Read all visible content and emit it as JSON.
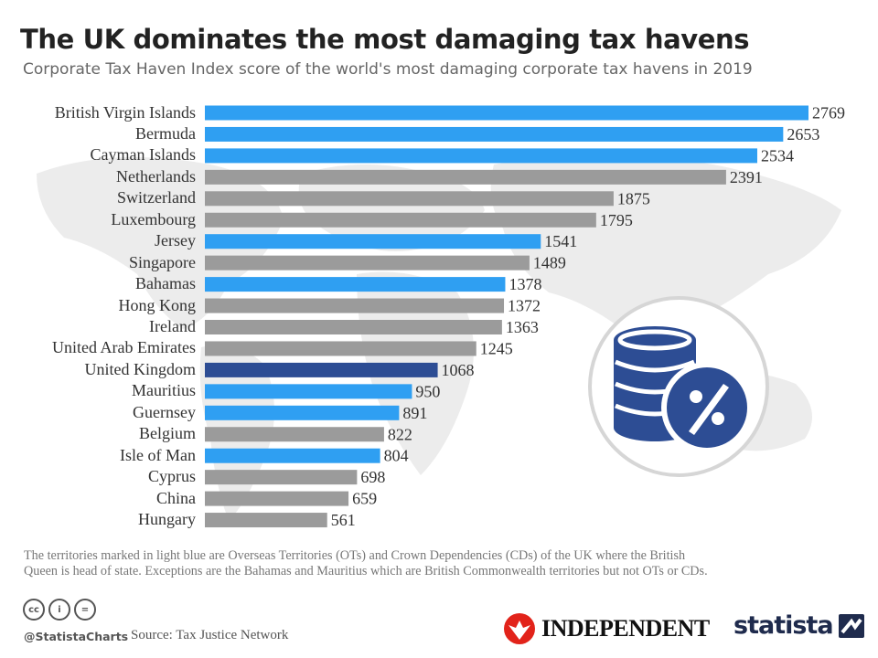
{
  "header": {
    "title": "The UK dominates the most damaging tax havens",
    "subtitle": "Corporate Tax Haven Index score of the world's most damaging corporate tax havens in 2019"
  },
  "colors": {
    "light_blue": "#2f9ff2",
    "grey": "#9b9b9b",
    "dark_blue": "#2d4d94",
    "map": "#ececec",
    "icon_blue": "#2d4d94",
    "icon_ring": "#d6d6d6"
  },
  "chart_data": {
    "type": "bar",
    "orientation": "horizontal",
    "categories": [
      "British Virgin Islands",
      "Bermuda",
      "Cayman Islands",
      "Netherlands",
      "Switzerland",
      "Luxembourg",
      "Jersey",
      "Singapore",
      "Bahamas",
      "Hong Kong",
      "Ireland",
      "United Arab Emirates",
      "United Kingdom",
      "Mauritius",
      "Guernsey",
      "Belgium",
      "Isle of Man",
      "Cyprus",
      "China",
      "Hungary"
    ],
    "values": [
      2769,
      2653,
      2534,
      2391,
      1875,
      1795,
      1541,
      1489,
      1378,
      1372,
      1363,
      1245,
      1068,
      950,
      891,
      822,
      804,
      698,
      659,
      561
    ],
    "bar_colors": [
      "light_blue",
      "light_blue",
      "light_blue",
      "grey",
      "grey",
      "grey",
      "light_blue",
      "grey",
      "light_blue",
      "grey",
      "grey",
      "grey",
      "dark_blue",
      "light_blue",
      "light_blue",
      "grey",
      "light_blue",
      "grey",
      "grey",
      "grey"
    ],
    "xlim": [
      0,
      2769
    ],
    "grid": false,
    "data_labels": true,
    "legend": "none"
  },
  "note": {
    "line1": "The territories marked in light blue are Overseas Territories (OTs) and Crown Dependencies (CDs) of the UK where the British",
    "line2": "Queen is head of state. Exceptions are the Bahamas and Mauritius which are British Commonwealth territories but not OTs or CDs."
  },
  "footer": {
    "license_icons": [
      "cc",
      "by",
      "nd"
    ],
    "license_labels": [
      "cc",
      "i",
      "="
    ],
    "handle": "@StatistaCharts",
    "source": "Source: Tax Justice Network",
    "partner_logo": "INDEPENDENT",
    "brand_logo": "statista"
  }
}
